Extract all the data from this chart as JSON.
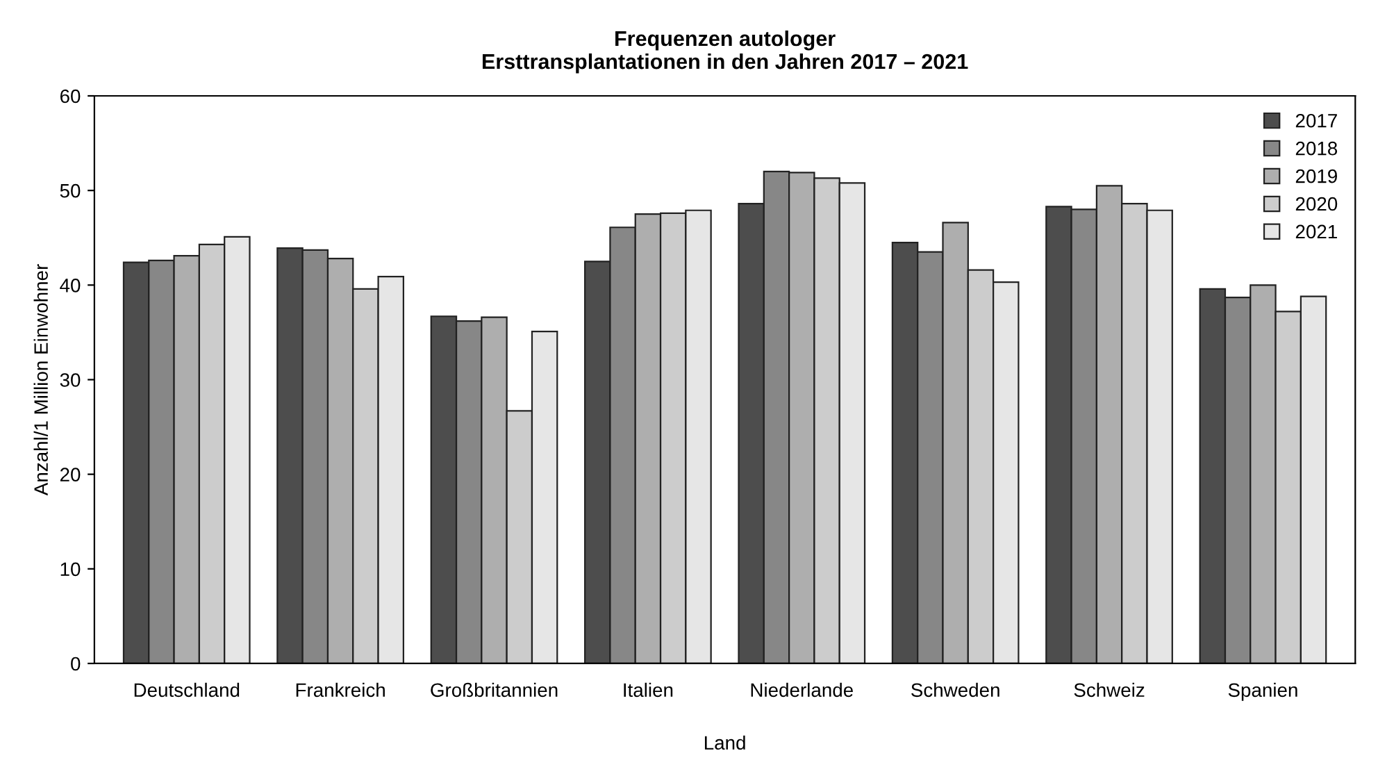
{
  "chart_data": {
    "type": "bar",
    "title": "Frequenzen autologer\nErsttransplantationen in den Jahren 2017 – 2021",
    "xlabel": "Land",
    "ylabel": "Anzahl/1 Million Einwohner",
    "categories": [
      "Deutschland",
      "Frankreich",
      "Großbritannien",
      "Italien",
      "Niederlande",
      "Schweden",
      "Schweiz",
      "Spanien"
    ],
    "series": [
      {
        "name": "2017",
        "color": "#4d4d4d",
        "values": [
          42.4,
          43.9,
          36.7,
          42.5,
          48.6,
          44.5,
          48.3,
          39.6
        ]
      },
      {
        "name": "2018",
        "color": "#878787",
        "values": [
          42.6,
          43.7,
          36.2,
          46.1,
          52.0,
          43.5,
          48.0,
          38.7
        ]
      },
      {
        "name": "2019",
        "color": "#aeaeae",
        "values": [
          43.1,
          42.8,
          36.6,
          47.5,
          51.9,
          46.6,
          50.5,
          40.0
        ]
      },
      {
        "name": "2020",
        "color": "#cccccc",
        "values": [
          44.3,
          39.6,
          26.7,
          47.6,
          51.3,
          41.6,
          48.6,
          37.2
        ]
      },
      {
        "name": "2021",
        "color": "#e6e6e6",
        "values": [
          45.1,
          40.9,
          35.1,
          47.9,
          50.8,
          40.3,
          47.9,
          38.8
        ]
      }
    ],
    "ylim": [
      0,
      60
    ],
    "yticks": [
      0,
      10,
      20,
      30,
      40,
      50,
      60
    ],
    "grid": false,
    "legend": "top right"
  }
}
